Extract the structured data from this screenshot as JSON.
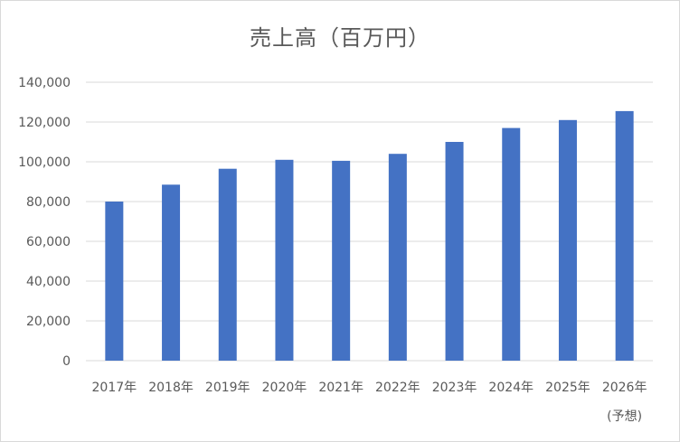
{
  "chart_data": {
    "type": "bar",
    "title": "売上高（百万円）",
    "categories": [
      "2017年",
      "2018年",
      "2019年",
      "2020年",
      "2021年",
      "2022年",
      "2023年",
      "2024年",
      "2025年",
      "2026年"
    ],
    "category_notes": [
      "",
      "",
      "",
      "",
      "",
      "",
      "",
      "",
      "",
      "(予想)"
    ],
    "values": [
      80000,
      88500,
      96500,
      101000,
      100500,
      104000,
      110000,
      117000,
      121000,
      125500
    ],
    "ylim": [
      0,
      140000
    ],
    "yticks": [
      0,
      20000,
      40000,
      60000,
      80000,
      100000,
      120000,
      140000
    ],
    "ytick_labels": [
      "0",
      "20,000",
      "40,000",
      "60,000",
      "80,000",
      "100,000",
      "120,000",
      "140,000"
    ],
    "grid": true,
    "legend": "none",
    "bar_color": "#4472c4",
    "grid_color": "#d9d9d9"
  }
}
